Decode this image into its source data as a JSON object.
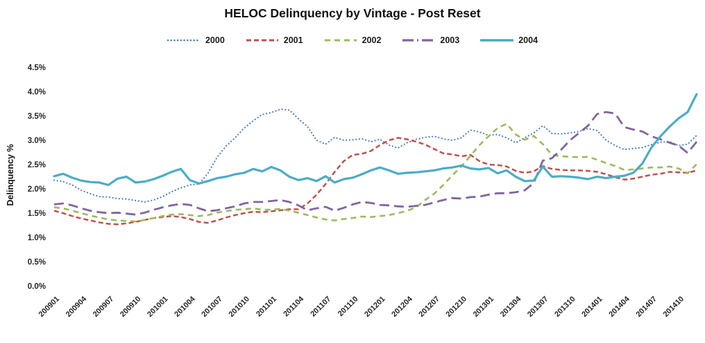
{
  "chart_data": {
    "type": "line",
    "title": "HELOC Delinquency by Vintage - Post Reset",
    "ylabel": "Delinquency %",
    "ylim": [
      0,
      4.5
    ],
    "ytick_step": 0.5,
    "ytick_labels": [
      "0.0%",
      "0.5%",
      "1.0%",
      "1.5%",
      "2.0%",
      "2.5%",
      "3.0%",
      "3.5%",
      "4.0%",
      "4.5%"
    ],
    "grid": false,
    "legend_position": "top",
    "xtick_every": 3,
    "x": [
      "200901",
      "200902",
      "200903",
      "200904",
      "200905",
      "200906",
      "200907",
      "200908",
      "200909",
      "200910",
      "200911",
      "200912",
      "201001",
      "201002",
      "201003",
      "201004",
      "201005",
      "201006",
      "201007",
      "201008",
      "201009",
      "201010",
      "201011",
      "201012",
      "201101",
      "201102",
      "201103",
      "201104",
      "201105",
      "201106",
      "201107",
      "201108",
      "201109",
      "201110",
      "201111",
      "201112",
      "201201",
      "201202",
      "201203",
      "201204",
      "201205",
      "201206",
      "201207",
      "201208",
      "201209",
      "201210",
      "201211",
      "201212",
      "201301",
      "201302",
      "201303",
      "201304",
      "201305",
      "201306",
      "201307",
      "201308",
      "201309",
      "201310",
      "201311",
      "201312",
      "201401",
      "201402",
      "201403",
      "201404",
      "201405",
      "201406",
      "201407",
      "201408",
      "201409",
      "201410",
      "201411",
      "201412"
    ],
    "series": [
      {
        "name": "2000",
        "color": "#4f81bd",
        "style": "dotted",
        "values": [
          2.18,
          2.15,
          2.08,
          1.97,
          1.9,
          1.84,
          1.83,
          1.8,
          1.79,
          1.76,
          1.73,
          1.77,
          1.84,
          1.94,
          2.02,
          2.08,
          2.1,
          2.32,
          2.65,
          2.88,
          3.05,
          3.25,
          3.4,
          3.53,
          3.57,
          3.64,
          3.62,
          3.44,
          3.28,
          3.0,
          2.92,
          3.06,
          3.0,
          3.01,
          3.03,
          2.97,
          3.02,
          2.9,
          2.84,
          2.95,
          3.02,
          3.06,
          3.08,
          3.03,
          3.0,
          3.05,
          3.21,
          3.17,
          3.1,
          3.12,
          3.05,
          2.95,
          3.05,
          3.15,
          3.3,
          3.14,
          3.13,
          3.15,
          3.18,
          3.24,
          3.2,
          3.0,
          2.89,
          2.81,
          2.83,
          2.85,
          2.91,
          2.96,
          2.97,
          2.89,
          2.92,
          3.1
        ]
      },
      {
        "name": "2001",
        "color": "#c0504d",
        "style": "dashed",
        "values": [
          1.55,
          1.5,
          1.44,
          1.39,
          1.35,
          1.31,
          1.28,
          1.27,
          1.29,
          1.32,
          1.36,
          1.4,
          1.42,
          1.44,
          1.42,
          1.38,
          1.32,
          1.3,
          1.35,
          1.41,
          1.46,
          1.5,
          1.53,
          1.52,
          1.54,
          1.56,
          1.58,
          1.58,
          1.7,
          1.88,
          2.1,
          2.35,
          2.57,
          2.7,
          2.72,
          2.78,
          2.9,
          3.0,
          3.05,
          3.02,
          2.97,
          2.91,
          2.82,
          2.73,
          2.71,
          2.67,
          2.7,
          2.57,
          2.5,
          2.49,
          2.46,
          2.37,
          2.33,
          2.36,
          2.47,
          2.41,
          2.39,
          2.38,
          2.38,
          2.37,
          2.35,
          2.3,
          2.24,
          2.19,
          2.21,
          2.25,
          2.29,
          2.31,
          2.35,
          2.34,
          2.33,
          2.38
        ]
      },
      {
        "name": "2002",
        "color": "#9bbb59",
        "style": "dashed2",
        "values": [
          1.62,
          1.6,
          1.55,
          1.5,
          1.45,
          1.41,
          1.37,
          1.35,
          1.34,
          1.33,
          1.36,
          1.4,
          1.44,
          1.47,
          1.48,
          1.46,
          1.44,
          1.46,
          1.51,
          1.54,
          1.57,
          1.58,
          1.6,
          1.57,
          1.57,
          1.59,
          1.55,
          1.51,
          1.46,
          1.41,
          1.37,
          1.35,
          1.38,
          1.4,
          1.43,
          1.42,
          1.44,
          1.46,
          1.5,
          1.55,
          1.62,
          1.77,
          1.9,
          2.08,
          2.28,
          2.46,
          2.68,
          2.9,
          3.08,
          3.25,
          3.34,
          3.12,
          3.01,
          3.09,
          2.92,
          2.7,
          2.67,
          2.66,
          2.65,
          2.66,
          2.6,
          2.53,
          2.47,
          2.39,
          2.4,
          2.42,
          2.44,
          2.44,
          2.46,
          2.42,
          2.32,
          2.51
        ]
      },
      {
        "name": "2003",
        "color": "#8064a2",
        "style": "longdash",
        "values": [
          1.68,
          1.7,
          1.66,
          1.6,
          1.55,
          1.52,
          1.5,
          1.51,
          1.49,
          1.47,
          1.51,
          1.57,
          1.62,
          1.66,
          1.69,
          1.67,
          1.6,
          1.54,
          1.56,
          1.6,
          1.64,
          1.7,
          1.73,
          1.73,
          1.75,
          1.77,
          1.73,
          1.66,
          1.56,
          1.6,
          1.63,
          1.55,
          1.61,
          1.68,
          1.73,
          1.71,
          1.67,
          1.66,
          1.64,
          1.63,
          1.65,
          1.67,
          1.72,
          1.77,
          1.81,
          1.8,
          1.83,
          1.84,
          1.88,
          1.91,
          1.91,
          1.93,
          1.97,
          2.12,
          2.58,
          2.63,
          2.8,
          3.0,
          3.15,
          3.3,
          3.54,
          3.58,
          3.55,
          3.27,
          3.22,
          3.18,
          3.08,
          3.02,
          2.95,
          2.89,
          2.74,
          2.97
        ]
      },
      {
        "name": "2004",
        "color": "#4bacc6",
        "style": "solid",
        "values": [
          2.26,
          2.31,
          2.23,
          2.17,
          2.14,
          2.13,
          2.08,
          2.21,
          2.25,
          2.13,
          2.15,
          2.2,
          2.27,
          2.35,
          2.41,
          2.18,
          2.11,
          2.16,
          2.22,
          2.25,
          2.3,
          2.33,
          2.41,
          2.36,
          2.45,
          2.38,
          2.25,
          2.18,
          2.22,
          2.16,
          2.26,
          2.13,
          2.2,
          2.23,
          2.3,
          2.38,
          2.44,
          2.38,
          2.31,
          2.33,
          2.34,
          2.36,
          2.38,
          2.42,
          2.44,
          2.48,
          2.42,
          2.4,
          2.43,
          2.32,
          2.38,
          2.25,
          2.16,
          2.17,
          2.46,
          2.25,
          2.26,
          2.25,
          2.23,
          2.2,
          2.25,
          2.22,
          2.25,
          2.27,
          2.33,
          2.52,
          2.85,
          3.08,
          3.28,
          3.45,
          3.58,
          3.95
        ]
      }
    ]
  }
}
